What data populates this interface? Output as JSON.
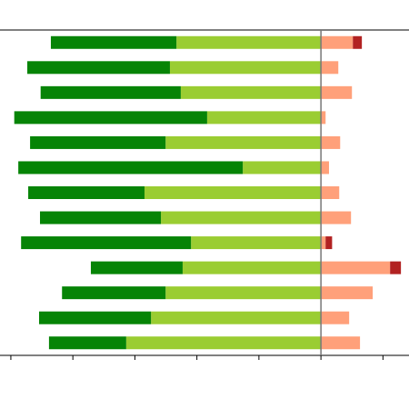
{
  "chart_data": {
    "type": "diverging_bar",
    "series": [
      {
        "color": "#9acd32",
        "values": [
          -46.6,
          -48.7,
          -45.2,
          -36.7,
          -50.1,
          -25.2,
          -56.9,
          -51.6,
          -41.9,
          -44.6,
          -50.1,
          -54.8,
          -62.8
        ]
      },
      {
        "color": "#068406",
        "values": [
          -40.5,
          -46.0,
          -45.2,
          -62.2,
          -43.7,
          -72.4,
          -37.5,
          -39.0,
          -54.8,
          -29.6,
          -33.4,
          -36.1,
          -24.9
        ]
      },
      {
        "color": "#ffa07a",
        "values": [
          10.3,
          5.6,
          10.0,
          1.5,
          6.2,
          2.6,
          5.9,
          9.7,
          1.5,
          22.3,
          16.7,
          9.1,
          12.6
        ]
      },
      {
        "color": "#b22222",
        "values": [
          2.9,
          0,
          0,
          0,
          0,
          0,
          0,
          0,
          2.1,
          3.5,
          0,
          0,
          0
        ]
      }
    ],
    "xlim": [
      -103.5,
      28.4
    ],
    "xticks": [
      -100,
      -80,
      -60,
      -40,
      -20,
      0,
      20
    ]
  }
}
